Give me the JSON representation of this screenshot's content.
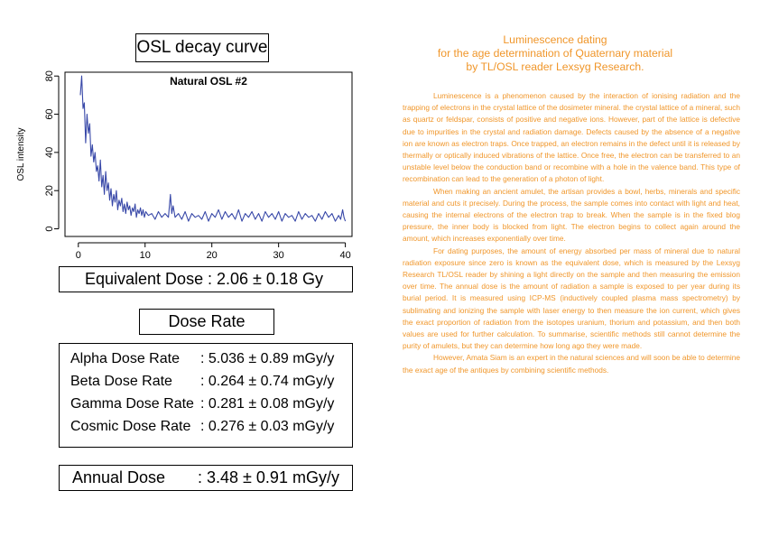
{
  "chart_box_title": "OSL decay curve",
  "equivalent_dose": {
    "label": "Equivalent Dose",
    "value": ": 2.06 ± 0.18  Gy"
  },
  "dose_rate_title": "Dose Rate",
  "dose_rates": [
    {
      "label": "Alpha Dose Rate",
      "value": ": 5.036 ± 0.89  mGy/y"
    },
    {
      "label": "Beta Dose Rate",
      "value": ": 0.264 ± 0.74  mGy/y"
    },
    {
      "label": "Gamma Dose Rate",
      "value": ": 0.281 ± 0.08  mGy/y"
    },
    {
      "label": "Cosmic Dose Rate",
      "value": ": 0.276 ± 0.03  mGy/y"
    }
  ],
  "annual_dose": {
    "label": "Annual Dose",
    "value": ": 3.48 ± 0.91 mGy/y"
  },
  "article": {
    "title_lines": [
      "Luminescence dating",
      "for the age determination of Quaternary material",
      "by TL/OSL reader Lexsyg Research."
    ],
    "paragraphs": [
      "Luminescence is a phenomenon caused by the interaction of ionising radiation and the trapping of electrons in the crystal lattice of the dosimeter mineral. the crystal lattice of a mineral, such as quartz or feldspar, consists of positive and negative ions. However, part of the lattice is defective due to impurities in the crystal and radiation damage. Defects caused by the absence of a negative ion are known as electron traps. Once trapped, an electron remains in the defect until it is released by thermally or optically induced vibrations of the lattice. Once free, the electron can be transferred to an unstable level below the conduction band or recombine with a hole in the valence band. This type of recombination can lead to the generation of a photon of light.",
      "When making an ancient amulet, the artisan provides a bowl, herbs, minerals and specific material and cuts it precisely. During the process, the sample comes into contact with light and heat, causing the internal electrons of the electron trap to break. When the sample is in the fixed blog pressure, the inner body is blocked from light. The electron begins to collect again around the amount, which increases exponentially over time.",
      "For dating purposes, the amount of energy absorbed per mass of mineral due to natural radiation exposure since zero is known as the equivalent dose, which is measured by the Lexsyg Research TL/OSL reader by shining a light directly on the sample and then measuring the emission over time. The annual dose is the amount of radiation a sample is exposed to per year during its burial period. It is measured using ICP-MS (inductively coupled plasma mass spectrometry) by sublimating and ionizing the sample with laser energy to then measure the ion current, which gives the exact proportion of radiation from the isotopes uranium, thorium and potassium, and then both values are used for further calculation. To summarise, scientific methods still cannot determine the purity of amulets, but they can determine how long ago they were made.",
      "However, Amata Siam is an expert in the natural sciences and will soon be able to determine the exact age of the antiques by combining scientific methods."
    ]
  },
  "chart_data": {
    "type": "line",
    "title": "Natural OSL #2",
    "xlabel": "",
    "ylabel": "OSL intensity",
    "xlim": [
      -2,
      41
    ],
    "ylim": [
      -4,
      82
    ],
    "xticks": [
      0,
      10,
      20,
      30,
      40
    ],
    "yticks": [
      0,
      20,
      40,
      60,
      80
    ],
    "grid": false,
    "line_color": "#3848a8",
    "series": [
      {
        "x": [
          0.3,
          0.5,
          0.7,
          0.9,
          1.1,
          1.3,
          1.5,
          1.7,
          1.9,
          2.1,
          2.3,
          2.5,
          2.7,
          2.9,
          3.1,
          3.3,
          3.5,
          3.7,
          3.9,
          4.1,
          4.3,
          4.5,
          4.7,
          4.9,
          5.1,
          5.3,
          5.5,
          5.7,
          5.9,
          6.1,
          6.3,
          6.5,
          6.7,
          6.9,
          7.1,
          7.3,
          7.5,
          7.7,
          7.9,
          8.1,
          8.3,
          8.5,
          8.7,
          8.9,
          9.1,
          9.3,
          9.5,
          9.7,
          9.9,
          10.1,
          10.5,
          11,
          11.5,
          12,
          12.5,
          13,
          13.5,
          13.8,
          14,
          14.2,
          14.5,
          15,
          15.5,
          16,
          16.5,
          17,
          17.5,
          18,
          18.5,
          19,
          19.5,
          20,
          20.5,
          21,
          21.5,
          22,
          22.5,
          23,
          23.5,
          24,
          24.5,
          25,
          25.5,
          26,
          26.5,
          27,
          27.5,
          28,
          28.5,
          29,
          29.5,
          30,
          30.5,
          31,
          31.5,
          32,
          32.5,
          33,
          33.5,
          34,
          34.5,
          35,
          35.5,
          36,
          36.5,
          37,
          37.5,
          38,
          38.5,
          39,
          39.3,
          39.6,
          39.8,
          40
        ],
        "y": [
          70,
          80,
          63,
          66,
          45,
          60,
          50,
          55,
          38,
          44,
          35,
          40,
          30,
          33,
          25,
          36,
          22,
          28,
          18,
          30,
          20,
          24,
          15,
          21,
          12,
          18,
          14,
          20,
          10,
          15,
          12,
          16,
          9,
          13,
          8,
          14,
          10,
          12,
          7,
          11,
          9,
          13,
          6,
          10,
          8,
          11,
          7,
          10,
          6,
          9,
          7,
          8,
          5,
          9,
          6,
          8,
          6,
          18,
          8,
          12,
          6,
          8,
          5,
          9,
          4,
          8,
          6,
          7,
          5,
          9,
          4,
          8,
          6,
          10,
          5,
          9,
          6,
          8,
          5,
          10,
          4,
          8,
          6,
          9,
          5,
          8,
          4,
          9,
          6,
          8,
          5,
          9,
          4,
          8,
          6,
          7,
          4,
          9,
          5,
          8,
          6,
          7,
          4,
          8,
          5,
          9,
          6,
          8,
          4,
          7,
          5,
          10,
          6,
          4
        ]
      }
    ]
  }
}
